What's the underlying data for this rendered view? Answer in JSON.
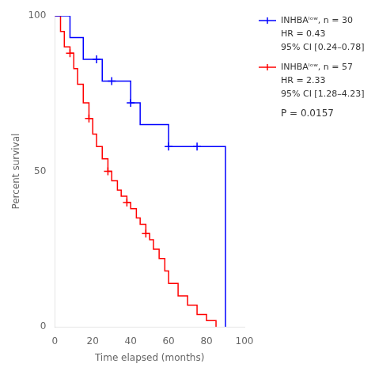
{
  "chart_data": {
    "type": "line",
    "line_style": "step",
    "xlabel": "Time elapsed (months)",
    "ylabel": "Percent survival",
    "xlim": [
      0,
      100
    ],
    "ylim": [
      0,
      100
    ],
    "xticks": [
      0,
      20,
      40,
      60,
      80,
      100
    ],
    "yticks": [
      0,
      50,
      100
    ],
    "grid": false,
    "series": [
      {
        "name": "INHBAˡᵒʷ, n = 30",
        "color": "blue",
        "marker": "plus",
        "x": [
          0,
          5,
          8,
          12,
          15,
          18,
          22,
          25,
          30,
          35,
          40,
          45,
          55,
          60,
          65,
          75,
          80,
          85,
          90
        ],
        "values": [
          100,
          100,
          93,
          93,
          86,
          86,
          86,
          79,
          79,
          79,
          72,
          65,
          65,
          58,
          58,
          58,
          58,
          58,
          0
        ],
        "censored": [
          22,
          30,
          40,
          60,
          75
        ],
        "annotations": [
          "HR = 0.43",
          "95% CI [0.24–0.78]"
        ]
      },
      {
        "name": "INHBAˡᵒʷ, n = 57",
        "color": "red",
        "marker": "plus",
        "x": [
          0,
          3,
          5,
          8,
          10,
          12,
          15,
          18,
          20,
          22,
          25,
          28,
          30,
          33,
          35,
          38,
          40,
          43,
          45,
          48,
          50,
          52,
          55,
          58,
          60,
          65,
          70,
          75,
          80,
          85
        ],
        "values": [
          100,
          95,
          90,
          88,
          83,
          78,
          72,
          67,
          62,
          58,
          54,
          50,
          47,
          44,
          42,
          40,
          38,
          35,
          33,
          30,
          28,
          25,
          22,
          18,
          14,
          10,
          7,
          4,
          2,
          0
        ],
        "censored": [
          8,
          18,
          28,
          38,
          48
        ],
        "annotations": [
          "HR = 2.33",
          "95% CI [1.28–4.23]"
        ]
      }
    ],
    "annotations": [
      "P = 0.0157"
    ]
  }
}
